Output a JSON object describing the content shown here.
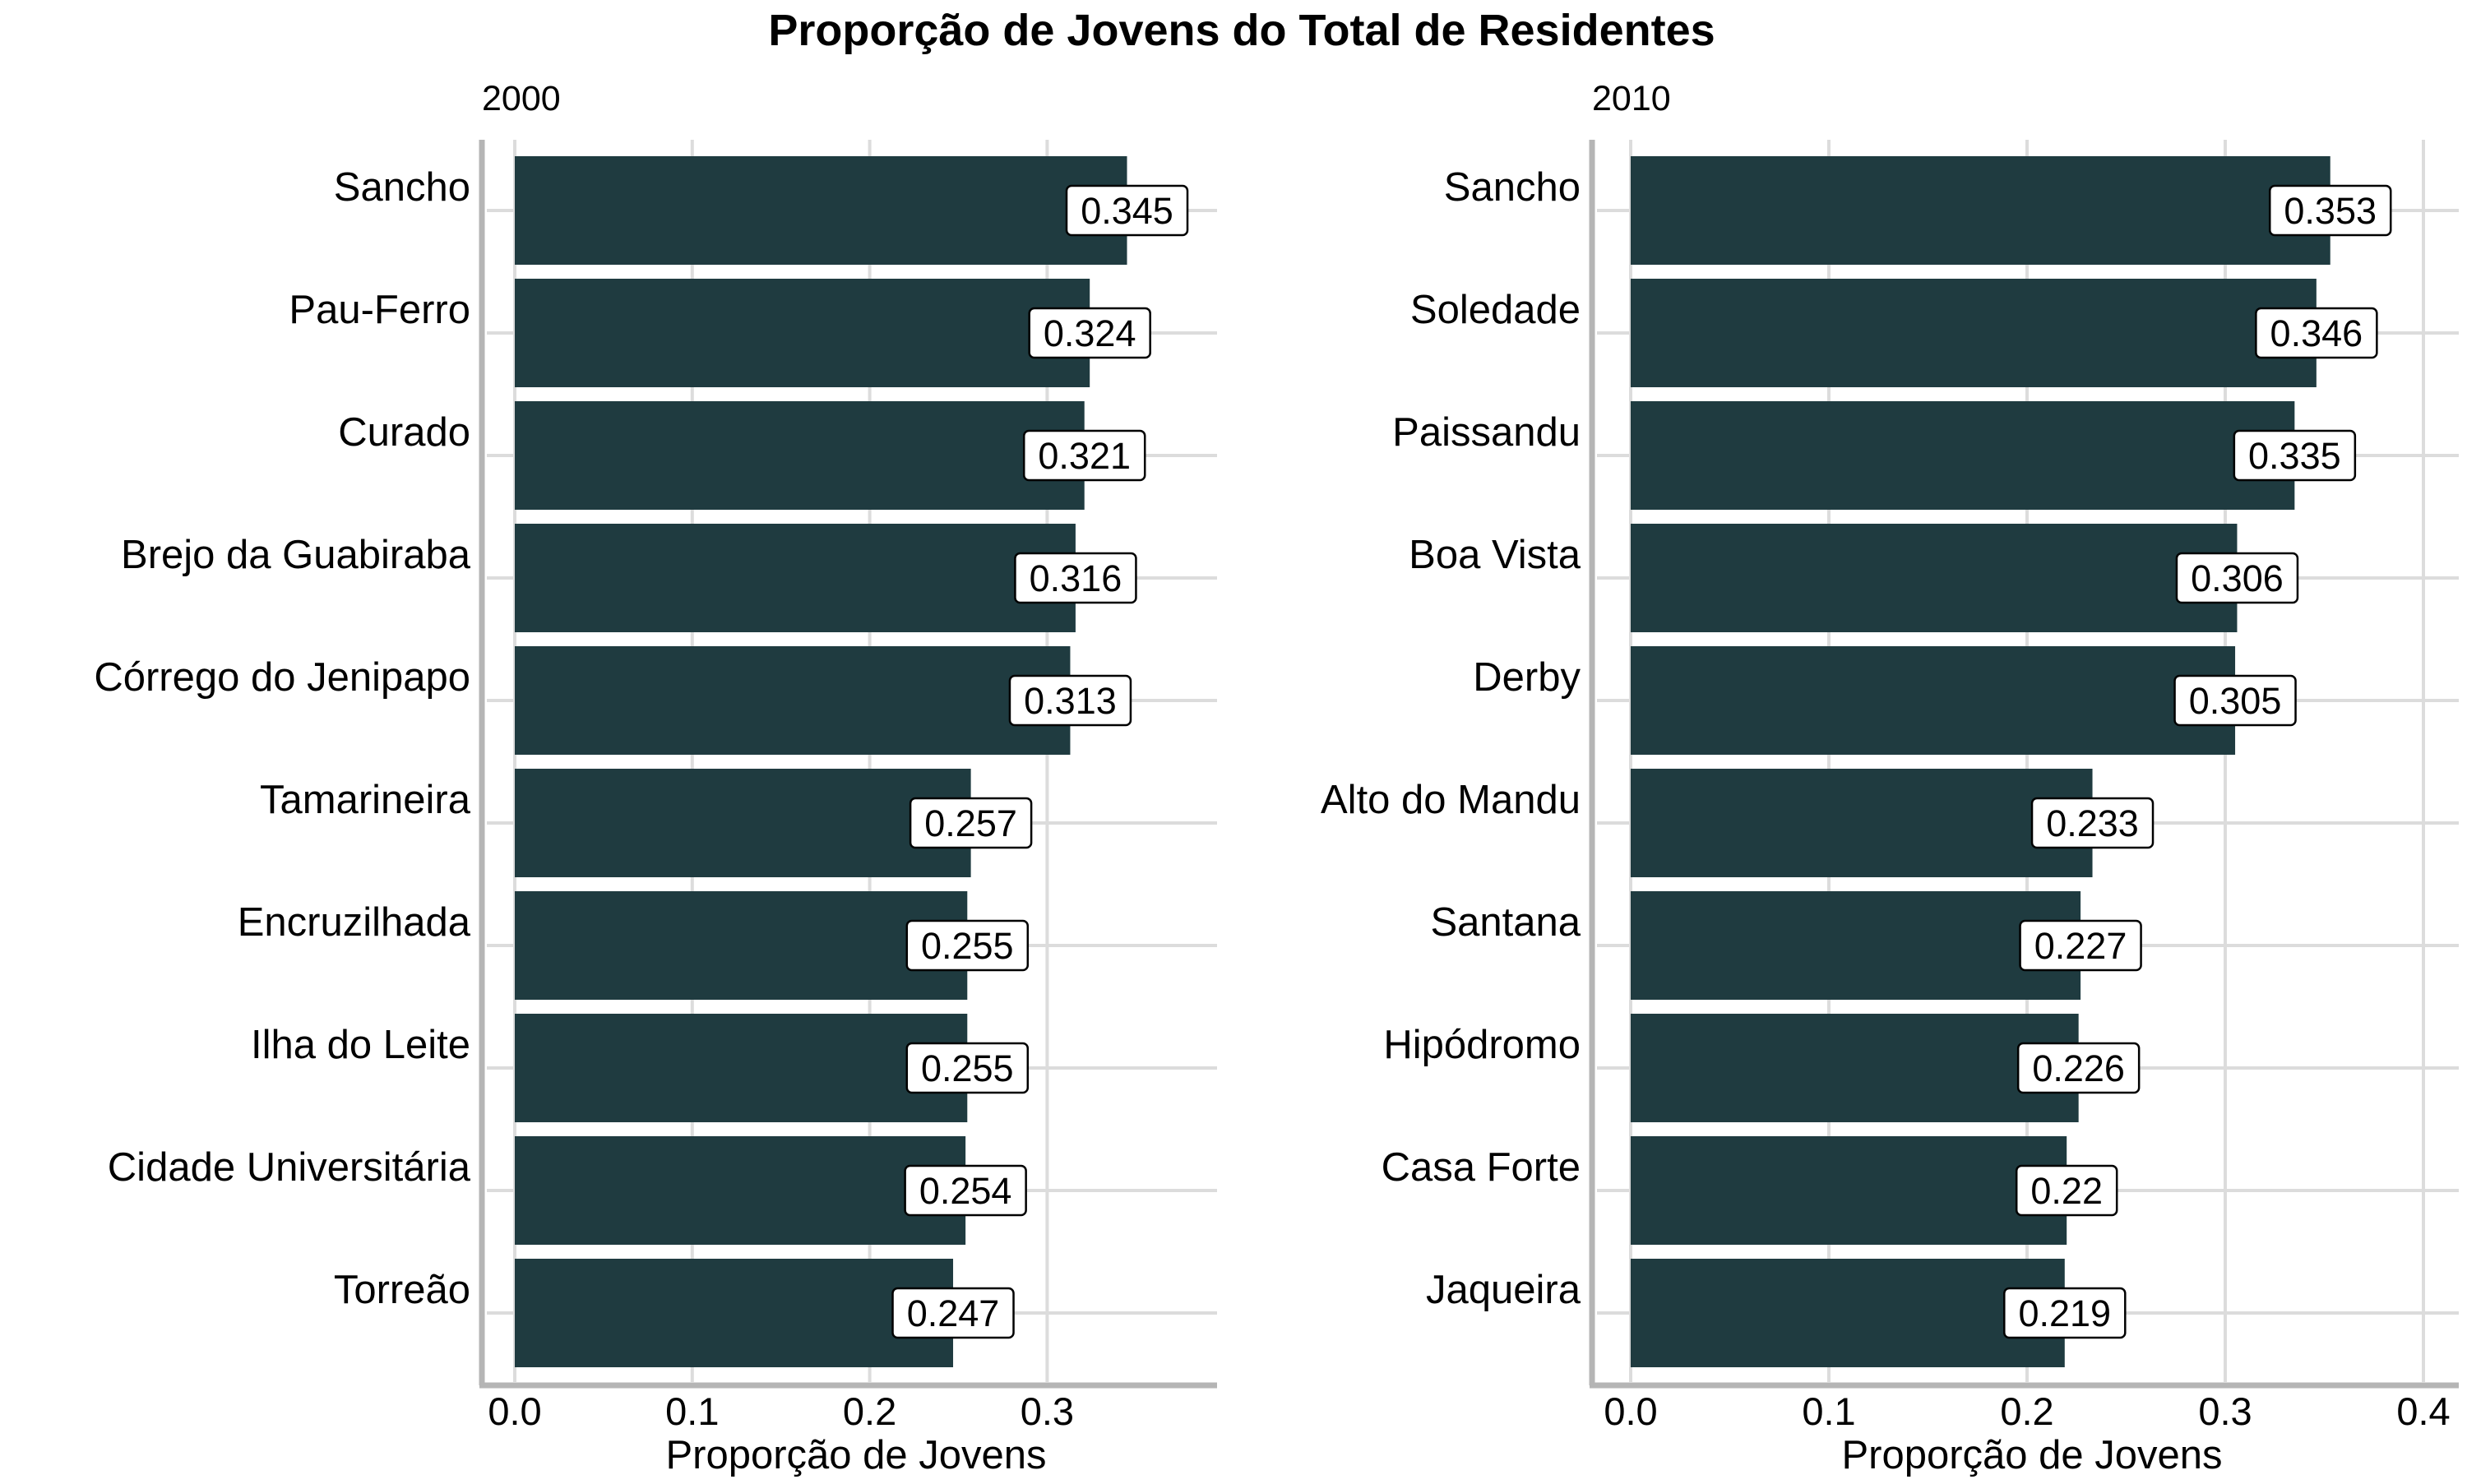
{
  "chart_data": {
    "type": "bar",
    "orientation": "horizontal",
    "title": "Proporção de Jovens do Total de Residentes",
    "bar_color": "#1f3b40",
    "grid": true,
    "panels": [
      {
        "label": "2000",
        "xlabel": "Proporção de Jovens",
        "xlim": [
          0,
          0.39
        ],
        "xticks": [
          "0.0",
          "0.1",
          "0.2",
          "0.3"
        ],
        "categories": [
          "Sancho",
          "Pau-Ferro",
          "Curado",
          "Brejo da Guabiraba",
          "Córrego do Jenipapo",
          "Tamarineira",
          "Encruzilhada",
          "Ilha do Leite",
          "Cidade Universitária",
          "Torreão"
        ],
        "values": [
          0.345,
          0.324,
          0.321,
          0.316,
          0.313,
          0.257,
          0.255,
          0.255,
          0.254,
          0.247
        ],
        "labels": [
          "0.345",
          "0.324",
          "0.321",
          "0.316",
          "0.313",
          "0.257",
          "0.255",
          "0.255",
          "0.254",
          "0.247"
        ]
      },
      {
        "label": "2010",
        "xlabel": "Proporção de Jovens",
        "xlim": [
          0,
          0.42
        ],
        "xticks": [
          "0.0",
          "0.1",
          "0.2",
          "0.3",
          "0.4"
        ],
        "categories": [
          "Sancho",
          "Soledade",
          "Paissandu",
          "Boa Vista",
          "Derby",
          "Alto do Mandu",
          "Santana",
          "Hipódromo",
          "Casa Forte",
          "Jaqueira"
        ],
        "values": [
          0.353,
          0.346,
          0.335,
          0.306,
          0.305,
          0.233,
          0.227,
          0.226,
          0.22,
          0.219
        ],
        "labels": [
          "0.353",
          "0.346",
          "0.335",
          "0.306",
          "0.305",
          "0.233",
          "0.227",
          "0.226",
          "0.22",
          "0.219"
        ]
      }
    ]
  }
}
